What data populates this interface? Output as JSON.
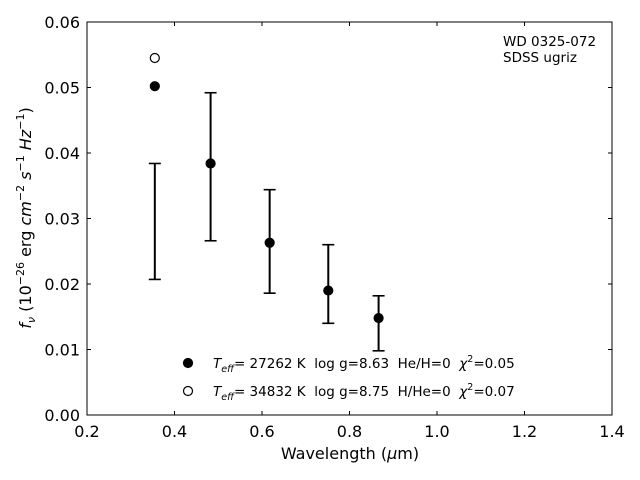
{
  "chart_data": {
    "type": "scatter",
    "xlabel_main": "Wavelength (",
    "xlabel_mu": "μ",
    "xlabel_unit": "m)",
    "ylabel": {
      "f": "f",
      "nu": "ν",
      "open": " (10",
      "exp26": "−26",
      "erg": " erg ",
      "cm": "cm",
      "exp2": "−2",
      "s": " s",
      "exp1a": "−1",
      "hz": " Hz",
      "exp1b": "−1",
      "close": ")"
    },
    "xlim": [
      0.2,
      1.4
    ],
    "ylim": [
      0.0,
      0.06
    ],
    "xticks": [
      "0.2",
      "0.4",
      "0.6",
      "0.8",
      "1.0",
      "1.2",
      "1.4"
    ],
    "xtick_values": [
      0.2,
      0.4,
      0.6,
      0.8,
      1.0,
      1.2,
      1.4
    ],
    "yticks": [
      "0.00",
      "0.01",
      "0.02",
      "0.03",
      "0.04",
      "0.05",
      "0.06"
    ],
    "ytick_values": [
      0.0,
      0.01,
      0.02,
      0.03,
      0.04,
      0.05,
      0.06
    ],
    "annotation": [
      "WD 0325-072",
      "SDSS ugriz"
    ],
    "observed": [
      {
        "band": "u",
        "x": 0.355,
        "ylo": 0.0207,
        "yhi": 0.0384
      },
      {
        "band": "g",
        "x": 0.4825,
        "ylo": 0.0266,
        "yhi": 0.0492
      },
      {
        "band": "r",
        "x": 0.6175,
        "ylo": 0.0186,
        "yhi": 0.0344
      },
      {
        "band": "i",
        "x": 0.7515,
        "ylo": 0.014,
        "yhi": 0.026
      },
      {
        "band": "z",
        "x": 0.8665,
        "ylo": 0.0098,
        "yhi": 0.0182
      }
    ],
    "series": [
      {
        "marker": "filled",
        "label_t": "T",
        "label_eff": "eff",
        "label_rest": "= 27262 K  log g=8.63  He/H=0  ",
        "label_chi": "χ",
        "label_chi_exp": "2",
        "label_chi_val": "=0.05",
        "x": [
          0.355,
          0.4825,
          0.6175,
          0.7515,
          0.8665
        ],
        "y": [
          0.0502,
          0.0384,
          0.0263,
          0.019,
          0.0148
        ]
      },
      {
        "marker": "open",
        "label_t": "T",
        "label_eff": "eff",
        "label_rest": "= 34832 K  log g=8.75  H/He=0  ",
        "label_chi": "χ",
        "label_chi_exp": "2",
        "label_chi_val": "=0.07",
        "x": [
          0.355
        ],
        "y": [
          0.0545
        ]
      }
    ],
    "grid": false,
    "legend_position": "bottom-center"
  }
}
